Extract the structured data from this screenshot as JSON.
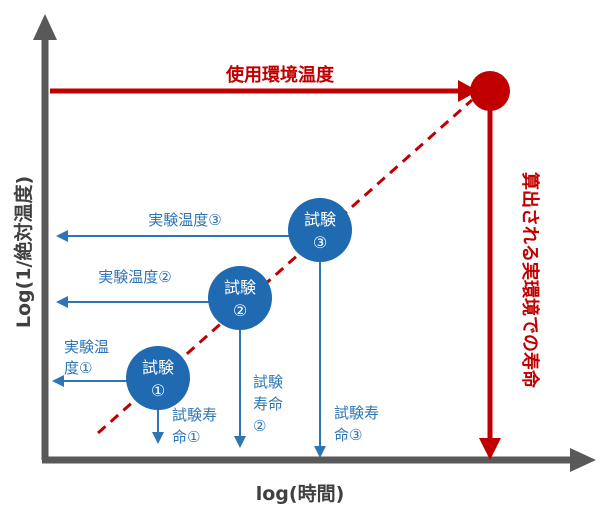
{
  "axes": {
    "x_label": "log(時間)",
    "y_label": "Log(1/絶対温度)"
  },
  "usage": {
    "temperature_label": "使用環境温度",
    "lifetime_label": "算出される実環境での寿命"
  },
  "tests": [
    {
      "name_line1": "試験",
      "name_line2": "③",
      "temp_label": "実験温度③",
      "life_label_lines": [
        "試験寿",
        "命③"
      ]
    },
    {
      "name_line1": "試験",
      "name_line2": "②",
      "temp_label": "実験温度②",
      "life_label_lines": [
        "試験",
        "寿命",
        "②"
      ]
    },
    {
      "name_line1": "試験",
      "name_line2": "①",
      "temp_label_lines": [
        "実験温",
        "度①"
      ],
      "life_label_lines": [
        "試験寿",
        "命①"
      ]
    }
  ],
  "colors": {
    "axis": "#595959",
    "usage": "#c00000",
    "test": "#1f6ab1",
    "test_arrow": "#2e75b6"
  }
}
